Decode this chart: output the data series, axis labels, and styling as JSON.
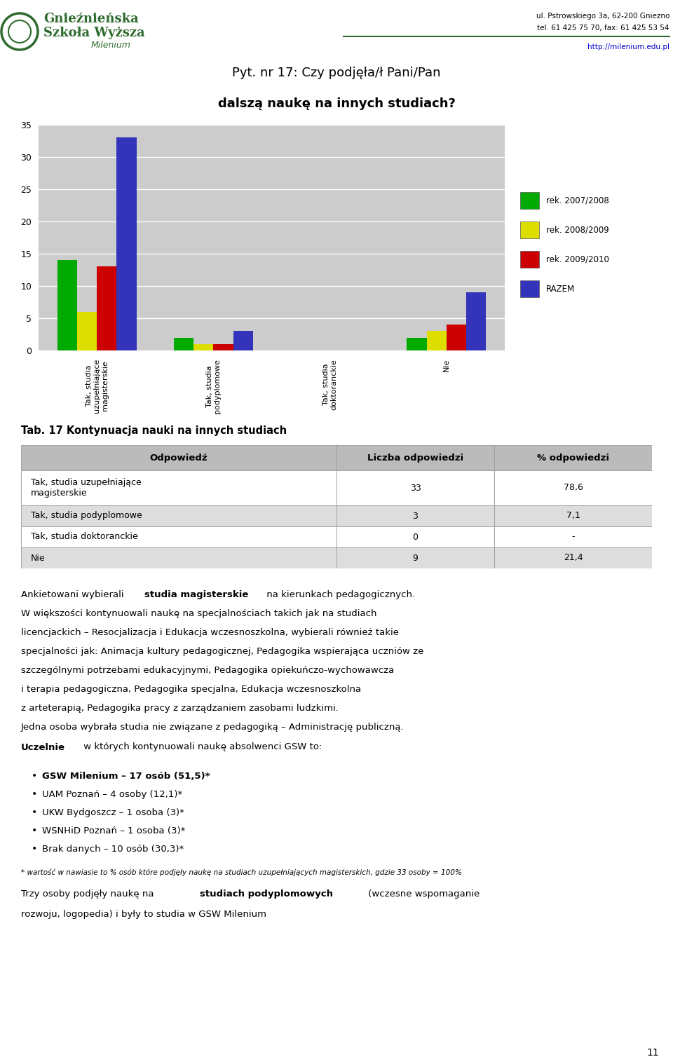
{
  "title_line1": "Pyt. nr 17: Czy podjęła/ł Pani/Pan",
  "title_line2": "dalszą naukę na innych studiach?",
  "categories": [
    "Tak, studia\nuzupełniające\nmagisterskie",
    "Tak, studia\npodyplomowe",
    "Tak, studia\ndoktoranckie",
    "Nie"
  ],
  "series": [
    {
      "label": "rek. 2007/2008",
      "color": "#00AA00",
      "values": [
        14,
        2,
        0,
        2
      ]
    },
    {
      "label": "rek. 2008/2009",
      "color": "#DDDD00",
      "values": [
        6,
        1,
        0,
        3
      ]
    },
    {
      "label": "rek. 2009/2010",
      "color": "#CC0000",
      "values": [
        13,
        1,
        0,
        4
      ]
    },
    {
      "label": "RAZEM",
      "color": "#3333BB",
      "values": [
        33,
        3,
        0,
        9
      ]
    }
  ],
  "ylim": [
    0,
    35
  ],
  "yticks": [
    0,
    5,
    10,
    15,
    20,
    25,
    30,
    35
  ],
  "bar_width": 0.17,
  "plot_area_bg": "#CCCCCC",
  "table_title": "Tab. 17 Kontynuacja nauki na innych studiach",
  "table_headers": [
    "Odpowiedź",
    "Liczba odpowiedzi",
    "% odpowiedzi"
  ],
  "table_rows": [
    [
      "Tak, studia uzupełniające\nmagisterskie",
      "33",
      "78,6"
    ],
    [
      "Tak, studia podyplomowe",
      "3",
      "7,1"
    ],
    [
      "Tak, studia doktoranckie",
      "0",
      "-"
    ],
    [
      "Nie",
      "9",
      "21,4"
    ]
  ],
  "header_col_bg": "#BBBBBB",
  "row_even_bg": "#DDDDDD",
  "row_odd_bg": "#FFFFFF",
  "footnote": "* wartość w nawiasie to % osób które podjęły naukę na studiach uzupełniających magisterskich, gdzie 33 osoby = 100%",
  "page_number": "11",
  "background_color": "#FFFFFF"
}
